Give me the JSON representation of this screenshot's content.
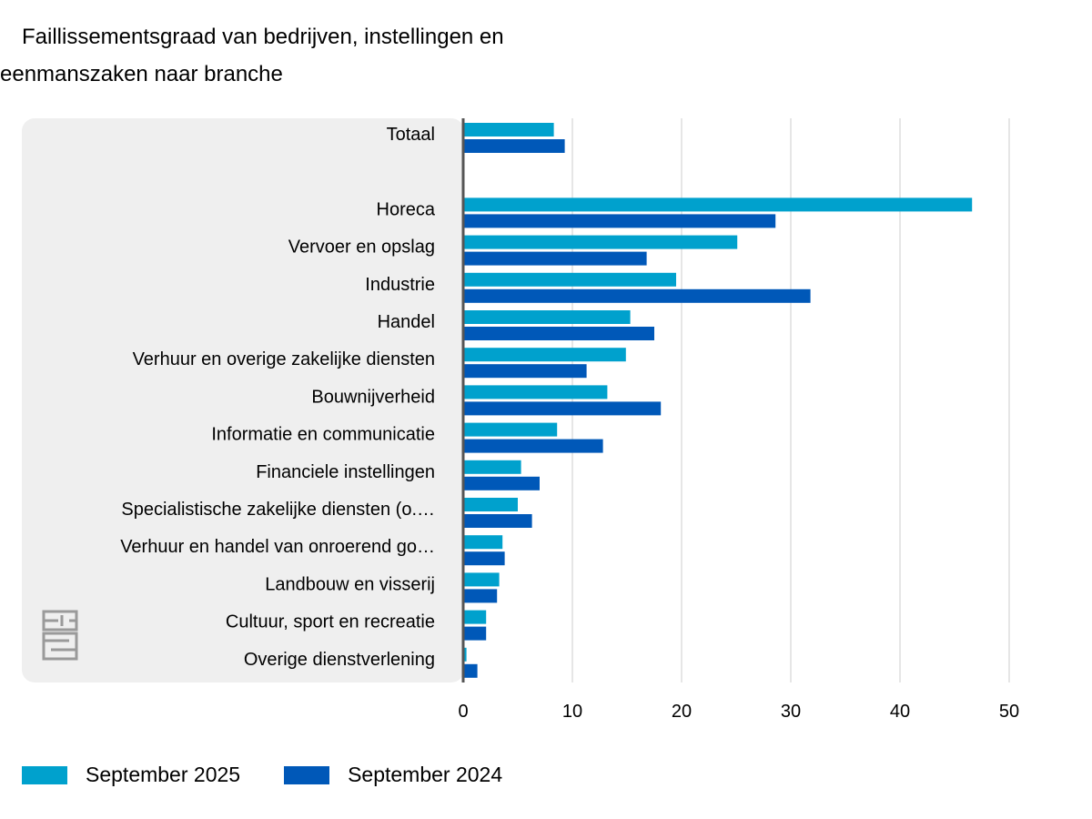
{
  "title_line1": "Faillissementsgraad van bedrijven, instellingen en",
  "title_line2": "eenmanszaken naar branche",
  "colors": {
    "series_2025": "#00a1cd",
    "series_2024": "#0058b8",
    "panel": "#efefef",
    "grid": "#cccccc",
    "axis": "#555555"
  },
  "logo_icon": "cbs-logo-icon",
  "chart_data": {
    "type": "bar",
    "orientation": "horizontal",
    "categories": [
      "Totaal",
      "",
      "Horeca",
      "Vervoer en opslag",
      "Industrie",
      "Handel",
      "Verhuur en overige zakelijke diensten",
      "Bouwnijverheid",
      "Informatie en communicatie",
      "Financiele instellingen",
      "Specialistische zakelijke diensten (o.…",
      "Verhuur en handel van onroerend go…",
      "Landbouw en visserij",
      "Cultuur, sport en recreatie",
      "Overige dienstverlening"
    ],
    "series": [
      {
        "name": "September 2025",
        "values": [
          8.3,
          null,
          46.6,
          25.1,
          19.5,
          15.3,
          14.9,
          13.2,
          8.6,
          5.3,
          5.0,
          3.6,
          3.3,
          2.1,
          0.3
        ]
      },
      {
        "name": "September 2024",
        "values": [
          9.3,
          null,
          28.6,
          16.8,
          31.8,
          17.5,
          11.3,
          18.1,
          12.8,
          7.0,
          6.3,
          3.8,
          3.1,
          2.1,
          1.3
        ]
      }
    ],
    "xlim": [
      0,
      50
    ],
    "xticks": [
      "0",
      "10",
      "20",
      "30",
      "40",
      "50"
    ],
    "grid": true,
    "legend": "bottom-left"
  },
  "legend": {
    "item1": "September 2025",
    "item2": "September 2024"
  }
}
